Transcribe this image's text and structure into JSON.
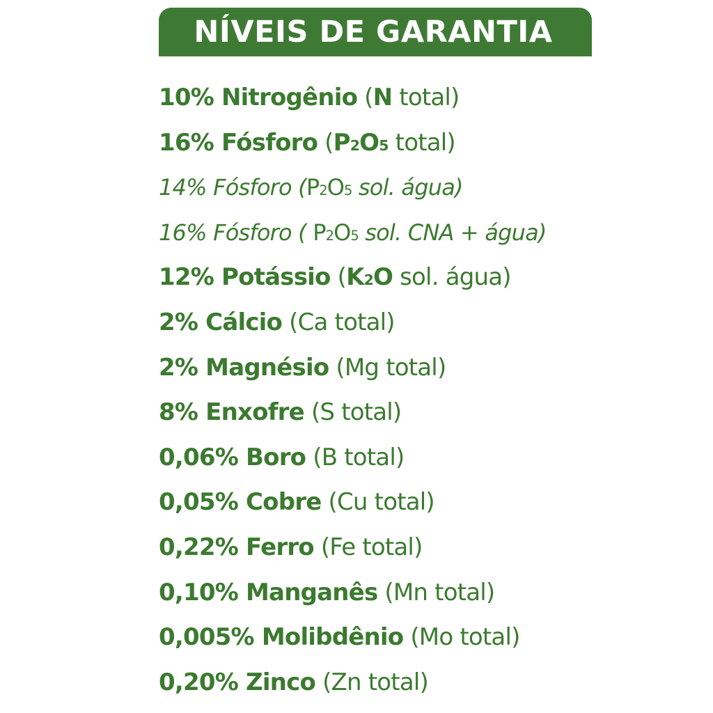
{
  "header": {
    "title": "NÍVEIS DE GARANTIA",
    "background_color": "#3f7a35",
    "text_color": "#ffffff"
  },
  "text_color": "#3b7a2f",
  "guarantees": [
    {
      "percent": "10%",
      "nutrient": "Nitrogênio",
      "open": "(",
      "formula_bold": "N",
      "formula_sub": "",
      "formula_rest": "",
      "qualifier": " total)",
      "style": "bold"
    },
    {
      "percent": "16%",
      "nutrient": "Fósforo",
      "open": "(",
      "formula_bold": "P",
      "formula_sub": "2",
      "formula_rest": "O",
      "formula_sub2": "5",
      "qualifier": " total)",
      "style": "bold"
    },
    {
      "percent": "14%",
      "nutrient": "Fósforo",
      "open": "(",
      "formula_bold": "",
      "formula_plain": "P",
      "formula_sub": "2",
      "formula_rest": "O",
      "formula_sub2": "5",
      "qualifier": " sol. água)",
      "style": "italic"
    },
    {
      "percent": "16%",
      "nutrient": "Fósforo",
      "open": "( ",
      "formula_bold": "",
      "formula_plain": "P",
      "formula_sub": "2",
      "formula_rest": "O",
      "formula_sub2": "5",
      "qualifier": " sol. CNA + água)",
      "style": "italic"
    },
    {
      "percent": "12%",
      "nutrient": "Potássio",
      "open": "(",
      "formula_bold": "K",
      "formula_sub": "2",
      "formula_rest": "O",
      "qualifier": " sol. água)",
      "style": "bold"
    },
    {
      "percent": "2%",
      "nutrient": "Cálcio",
      "detail": "(Ca total)",
      "style": "bold"
    },
    {
      "percent": "2%",
      "nutrient": "Magnésio",
      "detail": "(Mg total)",
      "style": "bold"
    },
    {
      "percent": "8%",
      "nutrient": "Enxofre",
      "detail": "(S total)",
      "style": "bold"
    },
    {
      "percent": "0,06%",
      "nutrient": "Boro",
      "detail": "(B total)",
      "style": "bold"
    },
    {
      "percent": "0,05%",
      "nutrient": "Cobre",
      "detail": "(Cu total)",
      "style": "bold"
    },
    {
      "percent": "0,22%",
      "nutrient": "Ferro",
      "detail": "(Fe total)",
      "style": "bold"
    },
    {
      "percent": "0,10%",
      "nutrient": "Manganês",
      "detail": "(Mn total)",
      "style": "bold"
    },
    {
      "percent": "0,005%",
      "nutrient": "Molibdênio",
      "detail": "(Mo total)",
      "style": "bold"
    },
    {
      "percent": "0,20%",
      "nutrient": "Zinco",
      "detail": "(Zn total)",
      "style": "bold"
    }
  ]
}
